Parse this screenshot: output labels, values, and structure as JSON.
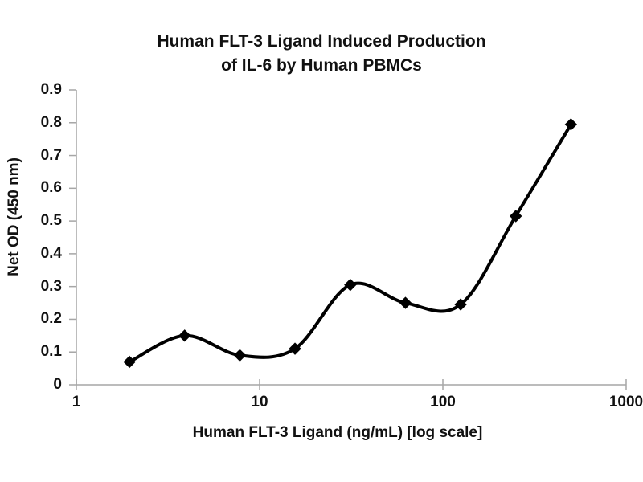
{
  "chart_data": {
    "type": "line",
    "title_line1": "Human FLT-3 Ligand Induced Production",
    "title_line2": "of IL-6 by Human PBMCs",
    "xlabel": "Human FLT-3 Ligand (ng/mL) [log scale]",
    "ylabel": "Net OD (450 nm)",
    "x_scale": "log",
    "xlim": [
      1,
      1000
    ],
    "ylim": [
      0,
      0.9
    ],
    "x_tick_values": [
      1,
      10,
      100,
      1000
    ],
    "x_tick_labels": [
      "1",
      "10",
      "100",
      "1000"
    ],
    "y_tick_values": [
      0,
      0.1,
      0.2,
      0.3,
      0.4,
      0.5,
      0.6,
      0.7,
      0.8,
      0.9
    ],
    "y_tick_labels": [
      "0",
      "0.1",
      "0.2",
      "0.3",
      "0.4",
      "0.5",
      "0.6",
      "0.7",
      "0.8",
      "0.9"
    ],
    "grid": false,
    "legend": "none",
    "series": [
      {
        "x": [
          1.95,
          3.9,
          7.8,
          15.6,
          31.25,
          62.5,
          125,
          250,
          500
        ],
        "y": [
          0.07,
          0.15,
          0.09,
          0.11,
          0.305,
          0.25,
          0.245,
          0.515,
          0.795
        ],
        "marker": "diamond",
        "line_style": "smooth",
        "color": "#000000"
      }
    ],
    "colors": {
      "axis": "#a6a6a6",
      "text": "#111111",
      "background": "#ffffff",
      "line": "#000000"
    }
  }
}
